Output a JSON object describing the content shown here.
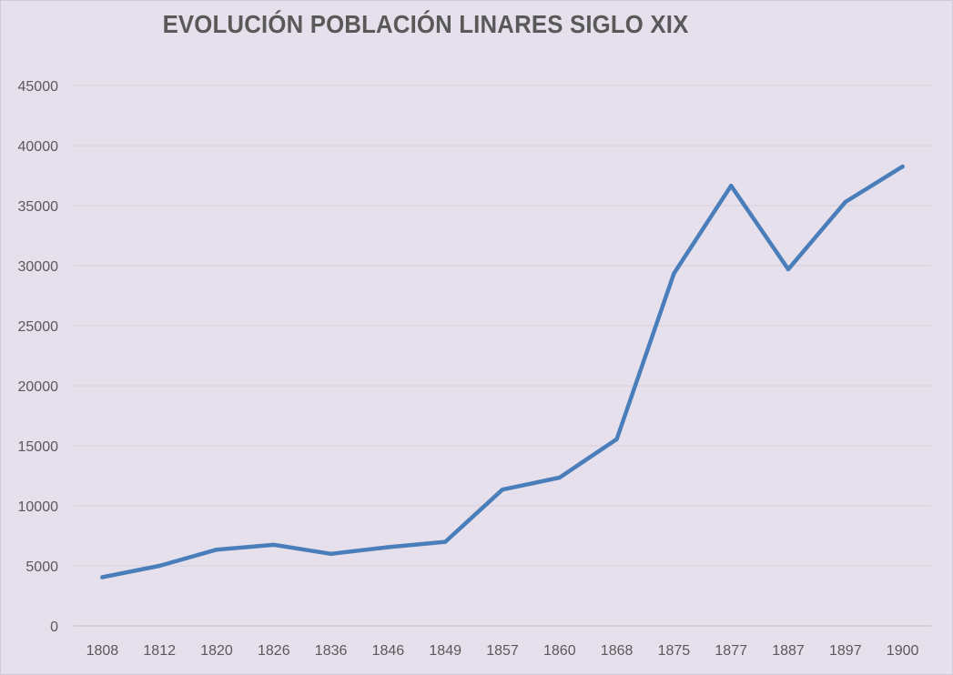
{
  "colors": {
    "background": "#e6e0ec",
    "line": "#4a7ebb",
    "gridline": "#d4cfd9",
    "axis": "#bfbfbf",
    "text": "#595959"
  },
  "chart_data": {
    "type": "line",
    "title": "EVOLUCIÓN POBLACIÓN LINARES SIGLO XIX",
    "xlabel": "",
    "ylabel": "",
    "categories": [
      "1808",
      "1812",
      "1820",
      "1826",
      "1836",
      "1846",
      "1849",
      "1857",
      "1860",
      "1868",
      "1875",
      "1877",
      "1887",
      "1897",
      "1900"
    ],
    "series": [
      {
        "values": [
          4050,
          5000,
          6350,
          6750,
          6000,
          6550,
          7000,
          11350,
          12350,
          15550,
          29350,
          36650,
          29700,
          35300,
          38250
        ]
      }
    ],
    "ylim": [
      0,
      45000
    ],
    "yticks": [
      "0",
      "5000",
      "10000",
      "15000",
      "20000",
      "25000",
      "30000",
      "35000",
      "40000",
      "45000"
    ],
    "grid": true,
    "legend": "none"
  }
}
